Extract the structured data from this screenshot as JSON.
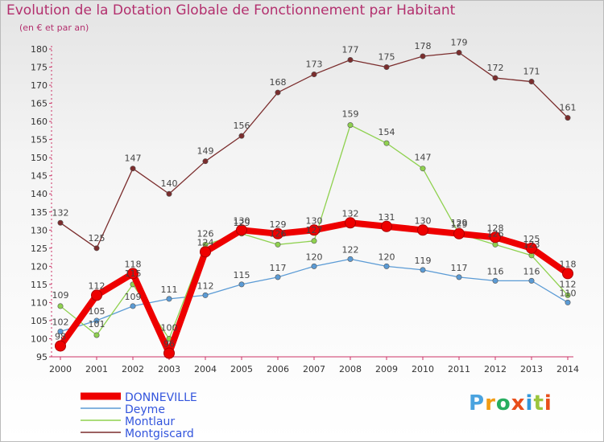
{
  "title": "Evolution de la Dotation Globale de Fonctionnement par Habitant",
  "subtitle": "(en € et par an)",
  "brand": "Proxiti",
  "chart_data": {
    "type": "line",
    "title": "Evolution de la Dotation Globale de Fonctionnement par Habitant",
    "subtitle": "(en € et par an)",
    "x": [
      "2000",
      "2001",
      "2002",
      "2003",
      "2004",
      "2005",
      "2006",
      "2007",
      "2008",
      "2009",
      "2010",
      "2011",
      "2012",
      "2013",
      "2014"
    ],
    "ylim": [
      95,
      180
    ],
    "yticks": [
      95,
      100,
      105,
      110,
      115,
      120,
      125,
      130,
      135,
      140,
      145,
      150,
      155,
      160,
      165,
      170,
      175,
      180
    ],
    "grid": false,
    "legend": "bottom-left",
    "series": [
      {
        "name": "DONNEVILLE",
        "color": "#ee0000",
        "values": [
          98,
          112,
          118,
          96,
          124,
          130,
          129,
          130,
          132,
          131,
          130,
          129,
          128,
          125,
          118
        ]
      },
      {
        "name": "Deyme",
        "color": "#5b9bd5",
        "values": [
          102,
          105,
          109,
          111,
          112,
          115,
          117,
          120,
          122,
          120,
          119,
          117,
          116,
          116,
          110
        ]
      },
      {
        "name": "Montlaur",
        "color": "#8fd14f",
        "values": [
          109,
          101,
          115,
          100,
          126,
          129,
          126,
          127,
          159,
          154,
          147,
          129,
          126,
          123,
          112
        ]
      },
      {
        "name": "Montgiscard",
        "color": "#7b2d2d",
        "values": [
          132,
          125,
          147,
          140,
          149,
          156,
          168,
          173,
          177,
          175,
          178,
          179,
          172,
          171,
          161
        ]
      }
    ]
  }
}
